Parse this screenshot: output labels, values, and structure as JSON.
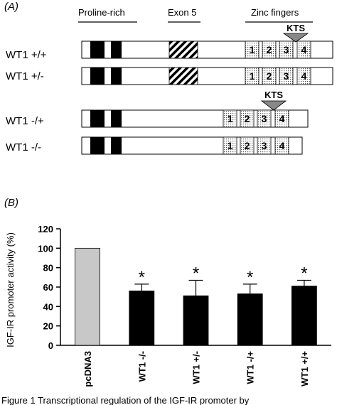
{
  "panel_a": {
    "label": "(A)",
    "headers": [
      "Proline-rich",
      "Exon 5",
      "Zinc fingers"
    ],
    "kts_label": "KTS",
    "zinc_finger_numbers": [
      "1",
      "2",
      "3",
      "4"
    ],
    "constructs": [
      {
        "name": "WT1 +/+",
        "exon5": true,
        "kts": true
      },
      {
        "name": "WT1 +/-",
        "exon5": true,
        "kts": false
      },
      {
        "name": "WT1 -/+",
        "exon5": false,
        "kts": true
      },
      {
        "name": "WT1 -/-",
        "exon5": false,
        "kts": false
      }
    ]
  },
  "panel_b": {
    "label": "(B)"
  },
  "chart_data": {
    "type": "bar",
    "title": "",
    "ylabel": "IGF-IR promoter activity (%)",
    "xlabel": "",
    "ylim": [
      0,
      120
    ],
    "yticks": [
      "0",
      "20",
      "40",
      "60",
      "80",
      "100",
      "120"
    ],
    "categories": [
      "pcDNA3",
      "WT1 -/-",
      "WT1 +/-",
      "WT1 -/+",
      "WT1 +/+"
    ],
    "values": [
      100,
      56,
      51,
      53,
      61
    ],
    "errors": [
      0,
      7,
      16,
      10,
      6
    ],
    "significance": [
      "",
      "*",
      "*",
      "*",
      "*"
    ],
    "colors": [
      "#c8c8c8",
      "#000000",
      "#000000",
      "#000000",
      "#000000"
    ],
    "grid": false
  },
  "caption": "Figure 1 Transcriptional regulation of the IGF-IR promoter by"
}
